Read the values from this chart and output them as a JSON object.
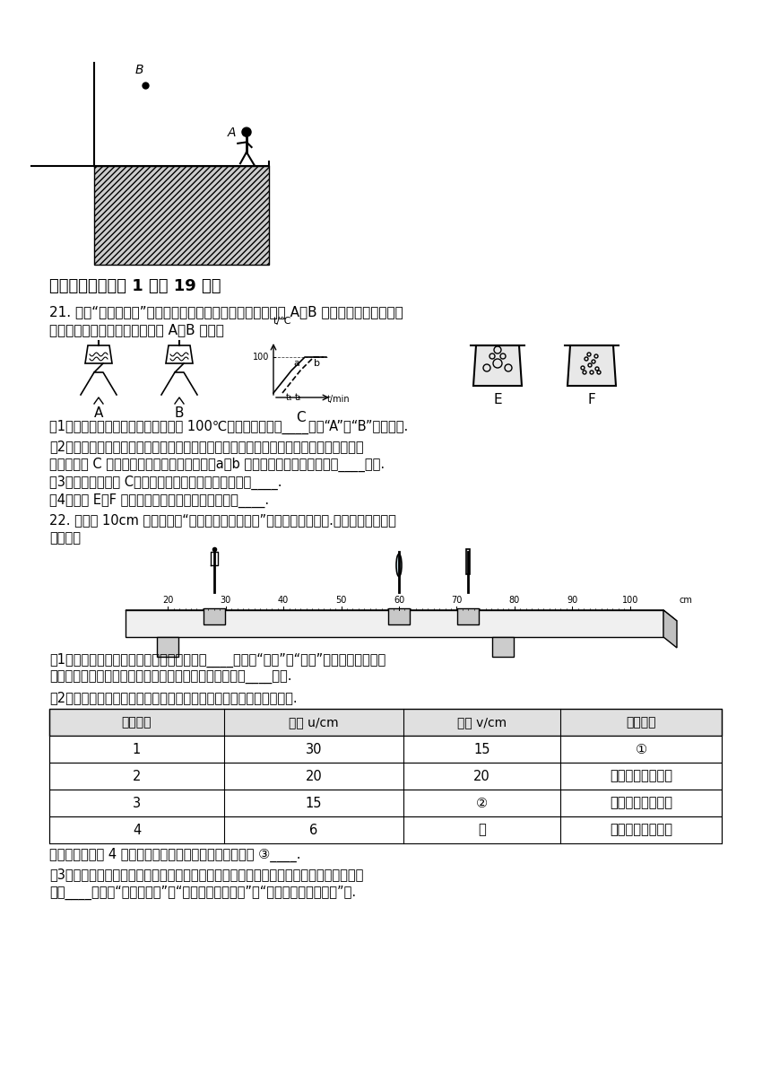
{
  "bg_color": "#ffffff",
  "title": "四、实验题（每空 1 分共 19 分）",
  "q21_intro": "21. 在做“观察水永腾”的实验时，甲、乙、丙三组同学分别从 A、B 两套器材中任选一套来",
  "q21_intro2": "完成实验：（实验室已准备多套 A、B 装置）",
  "q21_1": "（1）甲组同学发现所测水的永点高于 100℃，他们选择的是____（填“A”或“B”）套装置.",
  "q21_2": "（2）乙、丙两组同学虽然选用的实验装置相同，但水开始永腾的时刻不同，他们绘制的永",
  "q21_2b": "腾图象如图 C 所示，根据你的生活经验判断，a、b 两种图象不同的原因是水的____不同.",
  "q21_3": "（3）通过分析图象 C，归纳出水永腾时的主要特点是：____.",
  "q21_4": "（4）如图 E、F 你认为哪一种是水永腾时的情景？____.",
  "q22_intro": "22. 用焦距 10cm 的凸透镜做“探究凸透镜成像规律”的实验，如图所示.（凸透镜的位置固",
  "q22_intro2": "定不动）",
  "q22_1": "（1）为了便于观察实验现象，实验环境应该____（选填“较亮”或“较暗”）一些，此实验过",
  "q22_1b": "程中蜡烛燃烧后逐渐变短，则光屏上烛炊的像也将逐渐向____移动.",
  "q22_2": "（2）记录实验数据如下表，请将所缺的实验数据和像的性质补充完整.",
  "table_headers": [
    "实验序号",
    "物距 u/cm",
    "像距 v/cm",
    "像的性质"
  ],
  "table_data": [
    [
      "1",
      "30",
      "15",
      "①"
    ],
    [
      "2",
      "20",
      "20",
      "倒立、等大的实像"
    ],
    [
      "3",
      "15",
      "②",
      "倒立、放大的实像"
    ],
    [
      "4",
      "6",
      "无",
      "正立、放大的虚像"
    ]
  ],
  "q22_app": "请根据实验序号 4 的成像规律，写出在生活中的一个应用 ③____.",
  "q22_3": "（3）若已在光屏上成清晰的像，此时用遥光布遥住凸透镜的下小半部分，则所成的烛炊的",
  "q22_3b": "像为____（选填“不完整的像”、“亮度相同的完整像”或“亮度稍暗的完整的像”）."
}
